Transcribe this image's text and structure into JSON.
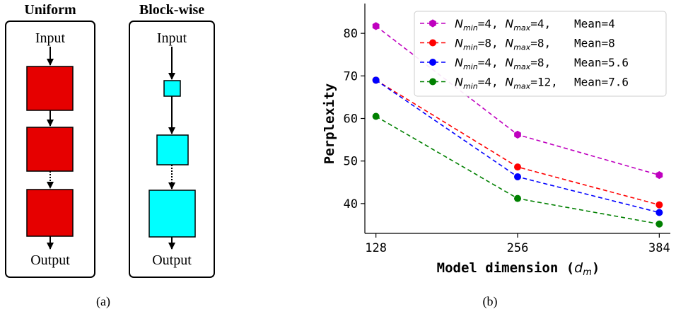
{
  "panel_a": {
    "caption": "(a)",
    "uniform": {
      "title": "Uniform",
      "input_label": "Input",
      "output_label": "Output",
      "block_color": "#e60000"
    },
    "blockwise": {
      "title": "Block-wise",
      "input_label": "Input",
      "output_label": "Output",
      "block_color": "#00ffff"
    }
  },
  "panel_b": {
    "caption": "(b)"
  },
  "chart_data": {
    "type": "line",
    "xlabel_prefix": "Model dimension (",
    "xlabel_var": "d",
    "xlabel_sub": "m",
    "xlabel_suffix": ")",
    "ylabel": "Perplexity",
    "x": [
      128,
      256,
      384
    ],
    "xticks": [
      128,
      256,
      384
    ],
    "yticks": [
      40,
      50,
      60,
      70,
      80
    ],
    "xlim": [
      118,
      394
    ],
    "ylim": [
      33,
      87
    ],
    "grid": false,
    "legend_position": "top-right",
    "series": [
      {
        "name": "N_min=4, N_max=4, Mean=4",
        "nmin": "4,",
        "nmax": "4,",
        "mean": "Mean=4",
        "values": [
          81.7,
          56.2,
          46.7
        ],
        "color": "#bf00bf",
        "marker": "hexagon"
      },
      {
        "name": "N_min=8, N_max=8, Mean=8",
        "nmin": "8,",
        "nmax": "8,",
        "mean": "Mean=8",
        "values": [
          69.0,
          48.6,
          39.7
        ],
        "color": "#ff0000",
        "marker": "circle"
      },
      {
        "name": "N_min=4, N_max=8, Mean=5.6",
        "nmin": "4,",
        "nmax": "8,",
        "mean": "Mean=5.6",
        "values": [
          69.0,
          46.3,
          37.9
        ],
        "color": "#0000ff",
        "marker": "circle"
      },
      {
        "name": "N_min=4, N_max=12, Mean=7.6",
        "nmin": "4,",
        "nmax": "12,",
        "mean": "Mean=7.6",
        "values": [
          60.5,
          41.2,
          35.2
        ],
        "color": "#008000",
        "marker": "circle"
      }
    ]
  }
}
